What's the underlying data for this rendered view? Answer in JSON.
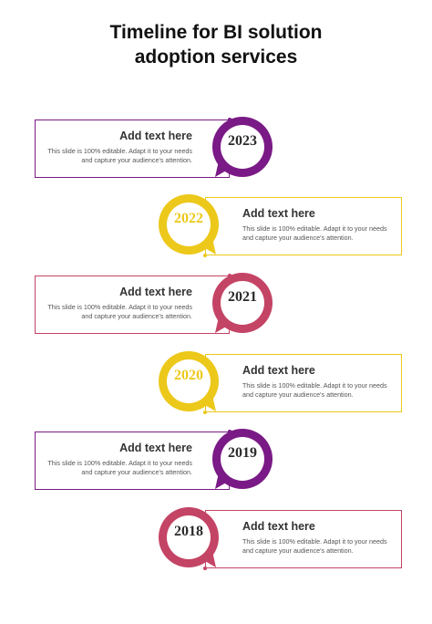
{
  "title_lines": [
    "Timeline for BI solution",
    "adoption services"
  ],
  "colors": {
    "purple": "#7a1a86",
    "yellow": "#ecc81a",
    "pink": "#c44465"
  },
  "milestones": [
    {
      "year": "2023",
      "heading": "Add text here",
      "body": "This slide is 100% editable. Adapt it to your needs and capture your audience's attention.",
      "side": "left",
      "color": "purple"
    },
    {
      "year": "2022",
      "heading": "Add text here",
      "body": "This slide is 100% editable. Adapt it to your needs and capture your audience's attention.",
      "side": "right",
      "color": "yellow"
    },
    {
      "year": "2021",
      "heading": "Add text here",
      "body": "This slide is 100% editable. Adapt it to your needs and capture your audience's attention.",
      "side": "left",
      "color": "pink"
    },
    {
      "year": "2020",
      "heading": "Add text here",
      "body": "This slide is 100% editable. Adapt it to your needs and capture your audience's attention.",
      "side": "right",
      "color": "yellow"
    },
    {
      "year": "2019",
      "heading": "Add text here",
      "body": "This slide is 100% editable. Adapt it to your needs and capture your audience's attention.",
      "side": "left",
      "color": "purple"
    },
    {
      "year": "2018",
      "heading": "Add text here",
      "body": "This slide is 100% editable. Adapt it to your needs and capture your audience's attention.",
      "side": "right",
      "color": "pink"
    }
  ]
}
